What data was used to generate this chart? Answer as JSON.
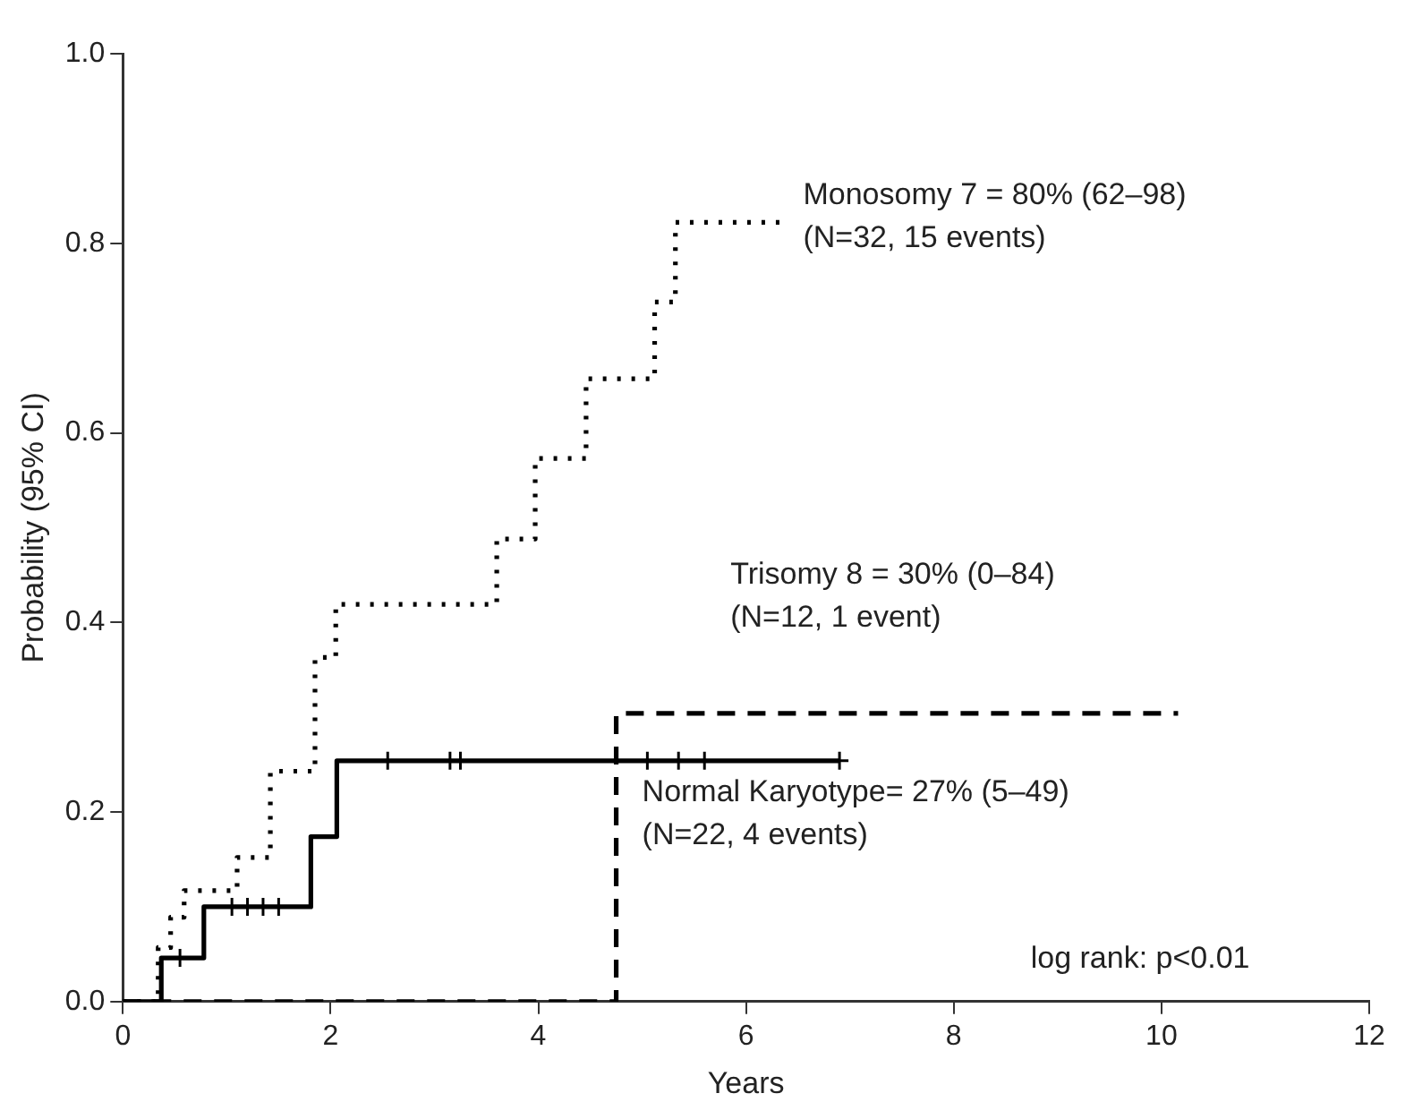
{
  "chart_data": {
    "type": "step",
    "xlabel": "Years",
    "ylabel": "Probability (95% CI)",
    "xlim": [
      0,
      12
    ],
    "xticks": [
      0,
      2,
      4,
      6,
      8,
      10,
      12
    ],
    "ylim": [
      0,
      1
    ],
    "yticks": [
      {
        "value": 0,
        "label": "0.0"
      },
      {
        "value": 0.2,
        "label": "0.2"
      },
      {
        "value": 0.4,
        "label": "0.4"
      },
      {
        "value": 0.6,
        "label": "0.6"
      },
      {
        "value": 0.8,
        "label": "0.8"
      },
      {
        "value": 1,
        "label": "1.0"
      }
    ],
    "grid": false,
    "legend": false,
    "series": [
      {
        "color": "#000000",
        "line_style": "dotted",
        "x": [
          0,
          0.34,
          0.46,
          0.59,
          1.1,
          1.42,
          1.85,
          2.05,
          3.6,
          3.97,
          4.46,
          5.12,
          5.32,
          6.35
        ],
        "values": [
          0,
          0.057,
          0.089,
          0.117,
          0.152,
          0.243,
          0.363,
          0.419,
          0.488,
          0.573,
          0.657,
          0.738,
          0.822,
          0.822
        ]
      },
      {
        "color": "#000000",
        "line_style": "dashed",
        "x": [
          0,
          4.75,
          10.16
        ],
        "values": [
          0,
          0.304,
          0.304
        ]
      },
      {
        "color": "#000000",
        "line_style": "solid",
        "x": [
          0,
          0.37,
          0.78,
          1.81,
          2.06,
          6.9
        ],
        "values": [
          0,
          0.046,
          0.1,
          0.174,
          0.254,
          0.254
        ]
      },
      {
        "type": "scatter",
        "marker": "cross",
        "color": "#000000",
        "x": [
          0.55,
          1.05,
          1.2,
          1.35,
          1.5,
          2.55,
          3.15,
          3.25,
          5.05,
          5.35,
          5.6,
          6.9
        ],
        "values": [
          0.046,
          0.1,
          0.1,
          0.1,
          0.1,
          0.254,
          0.254,
          0.254,
          0.254,
          0.254,
          0.254,
          0.254
        ]
      }
    ],
    "annotations": [
      "Monosomy 7 = 80% (62–98)\n(N=32, 15 events)",
      "Trisomy 8 = 30% (0–84)\n(N=12, 1 event)",
      "Normal Karyotype= 27% (5–49)\n(N=22, 4 events)",
      "log rank: p<0.01"
    ]
  }
}
